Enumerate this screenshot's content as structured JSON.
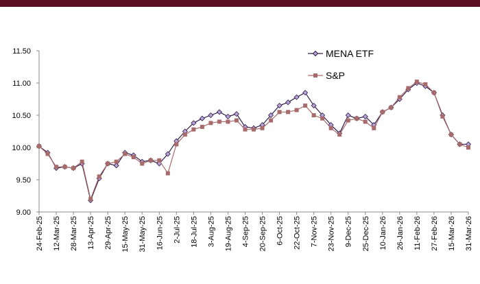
{
  "chart_data": {
    "type": "line",
    "categories": [
      "24-Feb-25",
      null,
      "12-Mar-25",
      null,
      "28-Mar-25",
      null,
      "13-Apr-25",
      null,
      "29-Apr-25",
      null,
      "15-May-25",
      null,
      "31-May-25",
      null,
      "16-Jun-25",
      null,
      "2-Jul-25",
      null,
      "18-Jul-25",
      null,
      "3-Aug-25",
      null,
      "19-Aug-25",
      null,
      "4-Sep-25",
      null,
      "20-Sep-25",
      null,
      "6-Oct-25",
      null,
      "22-Oct-25",
      null,
      "7-Nov-25",
      null,
      "23-Nov-25",
      null,
      "9-Dec-25",
      null,
      "25-Dec-25",
      null,
      "10-Jan-26",
      null,
      "26-Jan-26",
      null,
      "11-Feb-26",
      null,
      "27-Feb-26",
      null,
      "15-Mar-26",
      null,
      "31-Mar-26"
    ],
    "series": [
      {
        "name": "MENA ETF",
        "color": "#2e1a47",
        "values": [
          10.02,
          9.92,
          9.68,
          9.7,
          9.68,
          9.75,
          9.18,
          9.52,
          9.75,
          9.72,
          9.92,
          9.88,
          9.78,
          9.8,
          9.75,
          9.9,
          10.1,
          10.25,
          10.38,
          10.45,
          10.5,
          10.55,
          10.48,
          10.52,
          10.32,
          10.3,
          10.35,
          10.5,
          10.65,
          10.7,
          10.78,
          10.85,
          10.65,
          10.5,
          10.35,
          10.22,
          10.5,
          10.45,
          10.48,
          10.35,
          10.55,
          10.62,
          10.75,
          10.9,
          11.0,
          10.95,
          10.85,
          10.5,
          10.2,
          10.05,
          10.05
        ]
      },
      {
        "name": "S&P",
        "color": "#a86b6b",
        "values": [
          10.02,
          9.9,
          9.7,
          9.7,
          9.68,
          9.78,
          9.2,
          9.55,
          9.75,
          9.78,
          9.9,
          9.85,
          9.75,
          9.8,
          9.8,
          9.6,
          10.05,
          10.2,
          10.28,
          10.32,
          10.38,
          10.4,
          10.4,
          10.42,
          10.28,
          10.28,
          10.3,
          10.42,
          10.55,
          10.55,
          10.58,
          10.65,
          10.5,
          10.45,
          10.3,
          10.2,
          10.42,
          10.45,
          10.4,
          10.3,
          10.55,
          10.62,
          10.78,
          10.92,
          11.02,
          10.98,
          10.85,
          10.48,
          10.2,
          10.05,
          10.0
        ]
      }
    ],
    "ylim": [
      9,
      11.5
    ],
    "yticks": [
      {
        "value": 9,
        "label": "9.00"
      },
      {
        "value": 9.5,
        "label": "9.50"
      },
      {
        "value": 10,
        "label": "10.00"
      },
      {
        "value": 10.5,
        "label": "10.50"
      },
      {
        "value": 11,
        "label": "11.00"
      },
      {
        "value": 11.5,
        "label": "11.50"
      }
    ],
    "grid": false
  }
}
